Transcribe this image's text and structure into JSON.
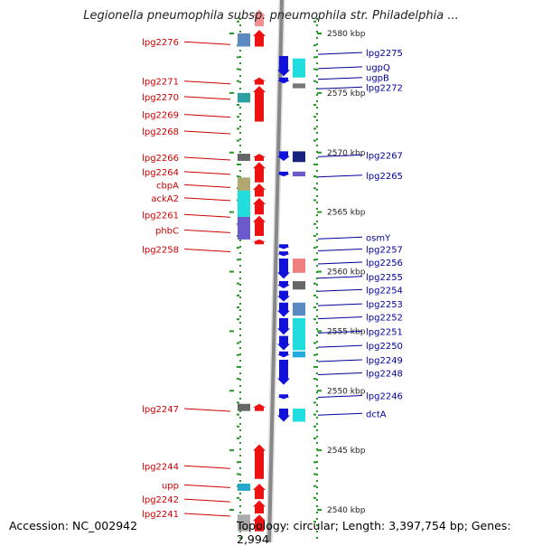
{
  "header": {
    "title": "Legionella pneumophila subsp. pneumophila str. Philadelphia ..."
  },
  "footer": {
    "accession": "Accession: NC_002942",
    "topology": "Topology: circular; Length: 3,397,754 bp; Genes: 2,994"
  },
  "colors": {
    "forward_strand": "#ee1111",
    "reverse_strand": "#1111dd",
    "forward_label": "#cc0000",
    "reverse_label": "#000099",
    "backbone": "#888888",
    "tick": "#229922"
  },
  "scale": {
    "unit": "kbp",
    "top_kbp": 2581.5,
    "bottom_kbp": 2539.0,
    "ticks": [
      {
        "kbp": 2580,
        "label": "2580 kbp"
      },
      {
        "kbp": 2575,
        "label": "2575 kbp"
      },
      {
        "kbp": 2570,
        "label": "2570 kbp"
      },
      {
        "kbp": 2565,
        "label": "2565 kbp"
      },
      {
        "kbp": 2560,
        "label": "2560 kbp"
      },
      {
        "kbp": 2555,
        "label": "2555 kbp"
      },
      {
        "kbp": 2550,
        "label": "2550 kbp"
      },
      {
        "kbp": 2545,
        "label": "2545 kbp"
      },
      {
        "kbp": 2540,
        "label": "2540 kbp"
      }
    ]
  },
  "forward_labels": [
    {
      "text": "lpg2276",
      "kbp": 2579.3
    },
    {
      "text": "lpg2271",
      "kbp": 2576.0
    },
    {
      "text": "lpg2270",
      "kbp": 2574.7
    },
    {
      "text": "lpg2269",
      "kbp": 2573.2
    },
    {
      "text": "lpg2268",
      "kbp": 2571.8
    },
    {
      "text": "lpg2266",
      "kbp": 2569.6
    },
    {
      "text": "lpg2264",
      "kbp": 2568.4
    },
    {
      "text": "cbpA",
      "kbp": 2567.3
    },
    {
      "text": "ackA2",
      "kbp": 2566.2
    },
    {
      "text": "lpg2261",
      "kbp": 2564.8
    },
    {
      "text": "phbC",
      "kbp": 2563.5
    },
    {
      "text": "lpg2258",
      "kbp": 2561.9
    },
    {
      "text": "lpg2247",
      "kbp": 2548.5
    },
    {
      "text": "lpg2244",
      "kbp": 2543.7
    },
    {
      "text": "upp",
      "kbp": 2542.1
    },
    {
      "text": "lpg2242",
      "kbp": 2540.9
    },
    {
      "text": "lpg2241",
      "kbp": 2539.7
    }
  ],
  "reverse_labels": [
    {
      "text": "lpg2275",
      "kbp": 2578.4
    },
    {
      "text": "ugpQ",
      "kbp": 2577.2
    },
    {
      "text": "ugpB",
      "kbp": 2576.3
    },
    {
      "text": "lpg2272",
      "kbp": 2575.5
    },
    {
      "text": "lpg2267",
      "kbp": 2569.8
    },
    {
      "text": "lpg2265",
      "kbp": 2568.1
    },
    {
      "text": "osmY",
      "kbp": 2562.9
    },
    {
      "text": "lpg2257",
      "kbp": 2561.9
    },
    {
      "text": "lpg2256",
      "kbp": 2560.8
    },
    {
      "text": "lpg2255",
      "kbp": 2559.6
    },
    {
      "text": "lpg2254",
      "kbp": 2558.5
    },
    {
      "text": "lpg2253",
      "kbp": 2557.3
    },
    {
      "text": "lpg2252",
      "kbp": 2556.2
    },
    {
      "text": "lpg2251",
      "kbp": 2555.0
    },
    {
      "text": "lpg2250",
      "kbp": 2553.8
    },
    {
      "text": "lpg2249",
      "kbp": 2552.6
    },
    {
      "text": "lpg2248",
      "kbp": 2551.5
    },
    {
      "text": "lpg2246",
      "kbp": 2549.6
    },
    {
      "text": "dctA",
      "kbp": 2548.1
    }
  ],
  "forward_features": [
    {
      "start": 2582.0,
      "end": 2580.6,
      "color": "#f09090"
    },
    {
      "start": 2580.3,
      "end": 2578.9,
      "color": "#ee1111"
    },
    {
      "start": 2576.3,
      "end": 2575.7,
      "color": "#ee1111"
    },
    {
      "start": 2575.6,
      "end": 2572.6,
      "color": "#ee1111"
    },
    {
      "start": 2569.9,
      "end": 2569.3,
      "color": "#ee1111"
    },
    {
      "start": 2569.2,
      "end": 2567.5,
      "color": "#ee1111"
    },
    {
      "start": 2567.4,
      "end": 2566.3,
      "color": "#ee1111"
    },
    {
      "start": 2566.2,
      "end": 2564.8,
      "color": "#ee1111"
    },
    {
      "start": 2564.7,
      "end": 2563.0,
      "color": "#ee1111"
    },
    {
      "start": 2562.7,
      "end": 2562.3,
      "color": "#ee1111"
    },
    {
      "start": 2548.9,
      "end": 2548.3,
      "color": "#ee1111"
    },
    {
      "start": 2545.5,
      "end": 2542.6,
      "color": "#ee1111"
    },
    {
      "start": 2542.2,
      "end": 2540.9,
      "color": "#ee1111"
    },
    {
      "start": 2540.8,
      "end": 2539.7,
      "color": "#ee1111"
    },
    {
      "start": 2539.6,
      "end": 2538.2,
      "color": "#ee1111"
    }
  ],
  "reverse_features": [
    {
      "start": 2578.1,
      "end": 2576.4,
      "color": "#1111dd"
    },
    {
      "start": 2576.3,
      "end": 2575.8,
      "color": "#1111dd"
    },
    {
      "start": 2570.1,
      "end": 2569.3,
      "color": "#1111dd"
    },
    {
      "start": 2568.4,
      "end": 2568.0,
      "color": "#1111dd"
    },
    {
      "start": 2562.3,
      "end": 2561.9,
      "color": "#1111dd"
    },
    {
      "start": 2561.7,
      "end": 2561.3,
      "color": "#1111dd"
    },
    {
      "start": 2561.1,
      "end": 2559.4,
      "color": "#1111dd"
    },
    {
      "start": 2559.2,
      "end": 2558.6,
      "color": "#1111dd"
    },
    {
      "start": 2558.4,
      "end": 2557.5,
      "color": "#1111dd"
    },
    {
      "start": 2557.4,
      "end": 2556.2,
      "color": "#1111dd"
    },
    {
      "start": 2556.1,
      "end": 2554.7,
      "color": "#1111dd"
    },
    {
      "start": 2554.6,
      "end": 2553.4,
      "color": "#1111dd"
    },
    {
      "start": 2553.3,
      "end": 2552.8,
      "color": "#1111dd"
    },
    {
      "start": 2552.6,
      "end": 2550.5,
      "color": "#1111dd"
    },
    {
      "start": 2549.7,
      "end": 2549.3,
      "color": "#1111dd"
    },
    {
      "start": 2548.5,
      "end": 2547.4,
      "color": "#1111dd"
    }
  ],
  "forward_colorblocks": [
    {
      "start": 2580.0,
      "end": 2578.9,
      "color": "#5a8ac0"
    },
    {
      "start": 2575.0,
      "end": 2574.2,
      "color": "#2aa0a0"
    },
    {
      "start": 2569.9,
      "end": 2569.3,
      "color": "#666666"
    },
    {
      "start": 2567.9,
      "end": 2566.8,
      "color": "#b0a870"
    },
    {
      "start": 2566.8,
      "end": 2564.6,
      "color": "#22dddd"
    },
    {
      "start": 2564.6,
      "end": 2562.7,
      "color": "#6a5acd"
    },
    {
      "start": 2548.9,
      "end": 2548.3,
      "color": "#666666"
    },
    {
      "start": 2542.2,
      "end": 2541.6,
      "color": "#22aacc"
    },
    {
      "start": 2539.6,
      "end": 2538.2,
      "color": "#aaaaaa"
    }
  ],
  "reverse_colorblocks": [
    {
      "start": 2577.9,
      "end": 2576.3,
      "color": "#22dddd"
    },
    {
      "start": 2575.8,
      "end": 2575.4,
      "color": "#777777"
    },
    {
      "start": 2570.1,
      "end": 2569.2,
      "color": "#1a237e"
    },
    {
      "start": 2568.4,
      "end": 2568.0,
      "color": "#6a5acd"
    },
    {
      "start": 2561.1,
      "end": 2559.9,
      "color": "#f08080"
    },
    {
      "start": 2559.2,
      "end": 2558.5,
      "color": "#666666"
    },
    {
      "start": 2557.4,
      "end": 2556.3,
      "color": "#5a8ac0"
    },
    {
      "start": 2556.1,
      "end": 2553.4,
      "color": "#22dddd"
    },
    {
      "start": 2553.3,
      "end": 2552.8,
      "color": "#22aadd"
    },
    {
      "start": 2548.5,
      "end": 2547.4,
      "color": "#22dddd"
    }
  ]
}
